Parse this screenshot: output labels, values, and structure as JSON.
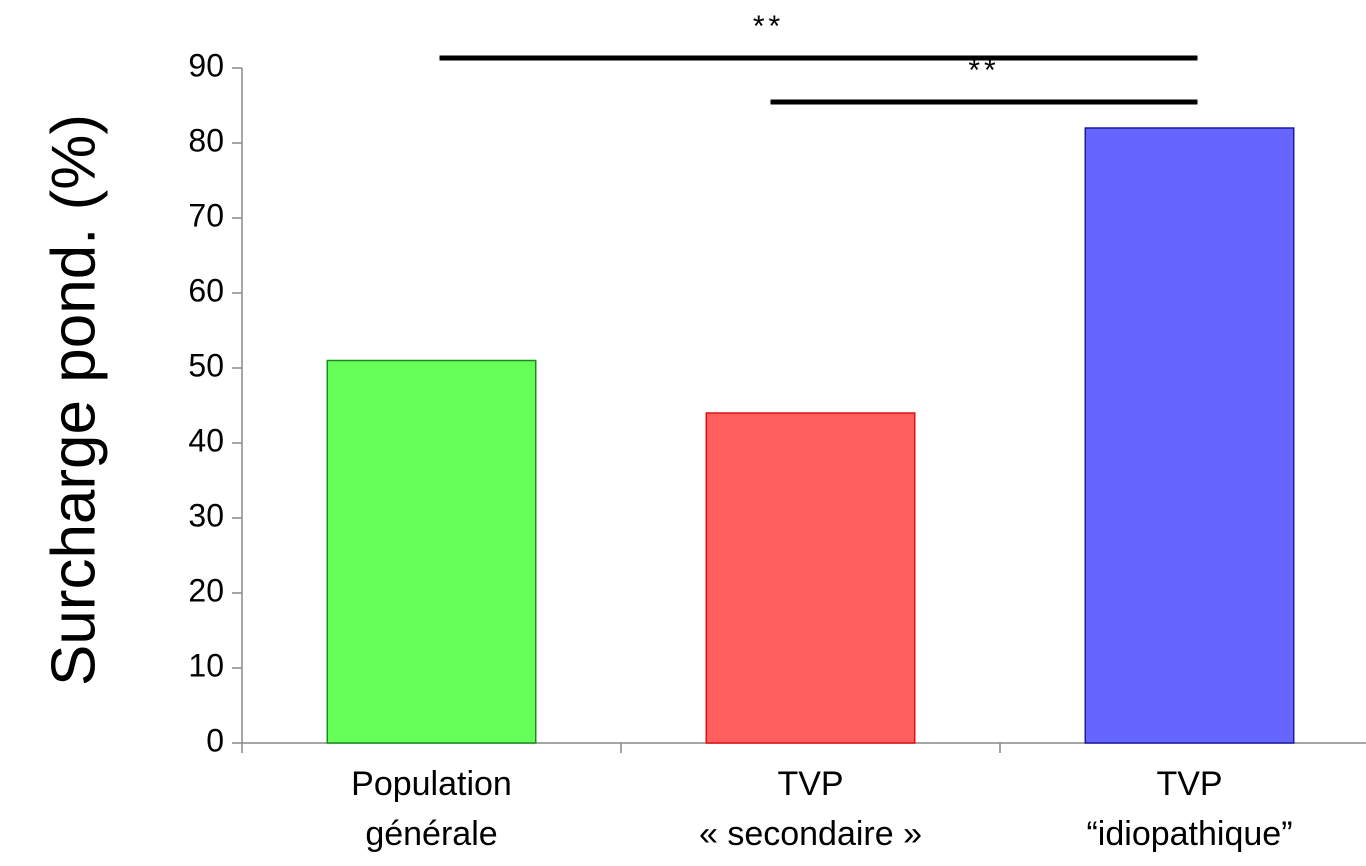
{
  "chart_data": {
    "type": "bar",
    "y_label": "Surcharge pond. (%)",
    "categories": [
      [
        "Population",
        "générale"
      ],
      [
        "TVP",
        "« secondaire »"
      ],
      [
        "TVP",
        "“idiopathique”"
      ]
    ],
    "values": [
      51,
      44,
      82
    ],
    "colors": [
      "#66ff5a",
      "#ff5f5f",
      "#6666ff"
    ],
    "edge_colors": [
      "#1a8a1a",
      "#e01010",
      "#1a1aa0"
    ],
    "ylim": [
      0,
      90
    ],
    "yticks": [
      0,
      10,
      20,
      30,
      40,
      50,
      60,
      70,
      80,
      90
    ],
    "annotations": [
      {
        "text": "**",
        "from": 0,
        "to": 2
      },
      {
        "text": "**",
        "from": 1,
        "to": 2
      }
    ]
  }
}
